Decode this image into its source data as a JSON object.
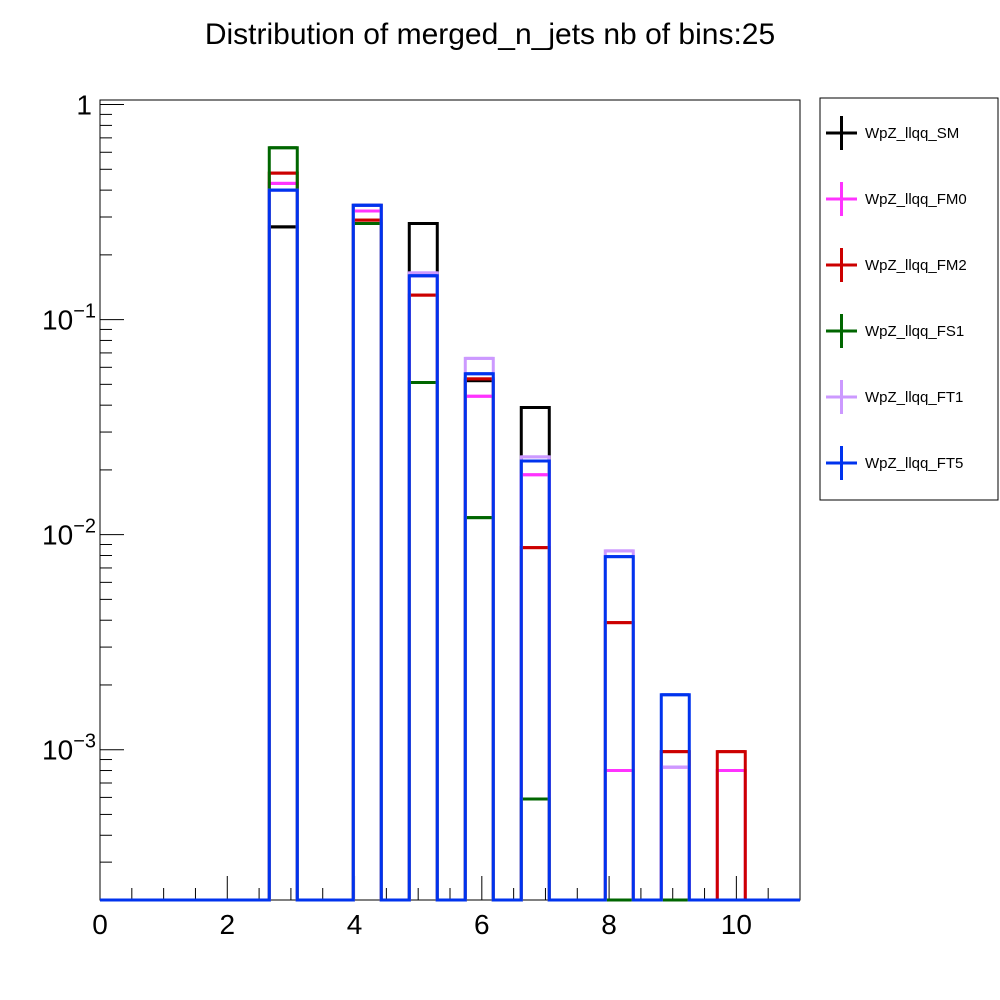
{
  "chart_data": {
    "type": "histogram",
    "title": "Distribution of merged_n_jets nb of bins:25",
    "xlabel": "",
    "ylabel": "",
    "xlim": [
      0,
      11
    ],
    "ylim": [
      0.0002,
      1.05
    ],
    "y_scale": "log",
    "grid": false,
    "legend_position": "right",
    "x_ticks": [
      "0",
      "2",
      "4",
      "6",
      "8",
      "10"
    ],
    "x_tick_values": [
      0,
      2,
      4,
      6,
      8,
      10
    ],
    "y_ticks": [
      {
        "value": 1,
        "base": "1",
        "exp": ""
      },
      {
        "value": 0.1,
        "base": "10",
        "exp": "−1"
      },
      {
        "value": 0.01,
        "base": "10",
        "exp": "−2"
      },
      {
        "value": 0.001,
        "base": "10",
        "exp": "−3"
      }
    ],
    "bins_filled": [
      [
        2.66,
        3.1
      ],
      [
        3.98,
        4.42
      ],
      [
        4.86,
        5.3
      ],
      [
        5.74,
        6.18
      ],
      [
        6.62,
        7.06
      ],
      [
        7.94,
        8.38
      ],
      [
        8.82,
        9.26
      ],
      [
        9.7,
        10.14
      ]
    ],
    "series": [
      {
        "name": "WpZ_llqq_SM",
        "color": "#000000",
        "values": [
          0.27,
          0.34,
          0.28,
          0.052,
          0.039,
          0,
          0,
          0
        ]
      },
      {
        "name": "WpZ_llqq_FM0",
        "color": "#ff33ff",
        "values": [
          0.43,
          0.32,
          0.16,
          0.044,
          0.019,
          0.0008,
          0.00083,
          0.0008
        ]
      },
      {
        "name": "WpZ_llqq_FM2",
        "color": "#cc0000",
        "values": [
          0.48,
          0.29,
          0.13,
          0.053,
          0.0087,
          0.0039,
          0.00098,
          0.00098
        ]
      },
      {
        "name": "WpZ_llqq_FS1",
        "color": "#006600",
        "values": [
          0.63,
          0.28,
          0.051,
          0.012,
          0.00059,
          0,
          0,
          0
        ]
      },
      {
        "name": "WpZ_llqq_FT1",
        "color": "#cc99ff",
        "values": [
          0.4,
          0.34,
          0.165,
          0.066,
          0.023,
          0.0084,
          0.00083,
          0
        ]
      },
      {
        "name": "WpZ_llqq_FT5",
        "color": "#0033ee",
        "values": [
          0.4,
          0.34,
          0.16,
          0.056,
          0.022,
          0.0079,
          0.0018,
          0
        ]
      }
    ]
  }
}
